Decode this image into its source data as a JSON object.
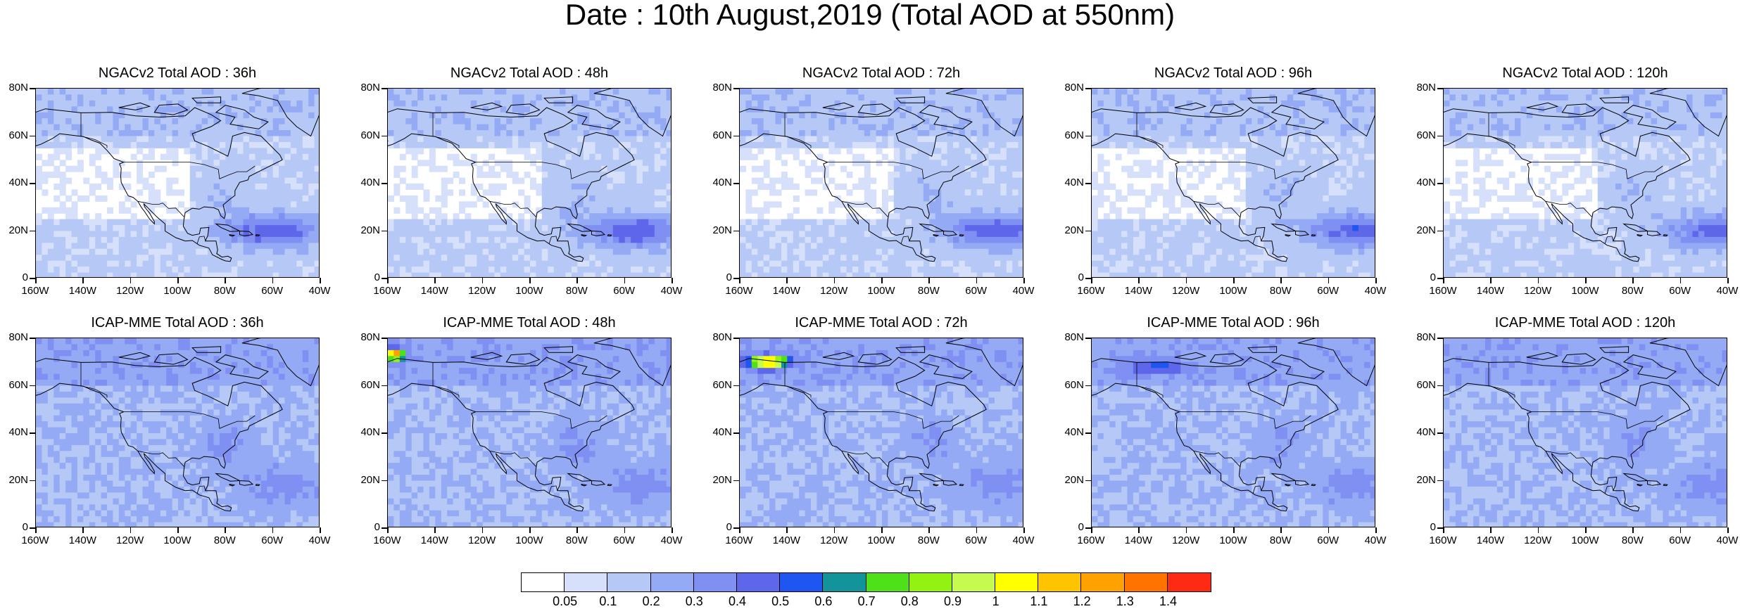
{
  "title": "Date : 10th August,2019 (Total AOD at 550nm)",
  "colors": {
    "land_outline": "#000000",
    "background": "#ffffff"
  },
  "axes": {
    "y_ticks": [
      "80N",
      "60N",
      "40N",
      "20N",
      "0"
    ],
    "x_ticks": [
      "160W",
      "140W",
      "120W",
      "100W",
      "80W",
      "60W",
      "40W"
    ]
  },
  "panels": [
    {
      "title": "NGACv2 Total AOD : 36h",
      "model": "NGACv2",
      "lead": "36h"
    },
    {
      "title": "NGACv2 Total AOD : 48h",
      "model": "NGACv2",
      "lead": "48h"
    },
    {
      "title": "NGACv2 Total AOD : 72h",
      "model": "NGACv2",
      "lead": "72h"
    },
    {
      "title": "NGACv2 Total AOD : 96h",
      "model": "NGACv2",
      "lead": "96h"
    },
    {
      "title": "NGACv2 Total AOD : 120h",
      "model": "NGACv2",
      "lead": "120h"
    },
    {
      "title": "ICAP-MME Total AOD : 36h",
      "model": "ICAP-MME",
      "lead": "36h"
    },
    {
      "title": "ICAP-MME Total AOD : 48h",
      "model": "ICAP-MME",
      "lead": "48h"
    },
    {
      "title": "ICAP-MME Total AOD : 72h",
      "model": "ICAP-MME",
      "lead": "72h"
    },
    {
      "title": "ICAP-MME Total AOD : 96h",
      "model": "ICAP-MME",
      "lead": "96h"
    },
    {
      "title": "ICAP-MME Total AOD : 120h",
      "model": "ICAP-MME",
      "lead": "120h"
    }
  ],
  "colorbar": {
    "colors": [
      "#ffffff",
      "#d6e0fb",
      "#b6c8f6",
      "#94aaf5",
      "#7f8ff2",
      "#5e66ea",
      "#1f55f0",
      "#13949a",
      "#4ee11a",
      "#94f213",
      "#c6fa4e",
      "#ffff00",
      "#ffc400",
      "#ffa100",
      "#ff7400",
      "#ff2a14"
    ],
    "labels": [
      "0.05",
      "0.1",
      "0.2",
      "0.3",
      "0.4",
      "0.5",
      "0.6",
      "0.7",
      "0.8",
      "0.9",
      "1",
      "1.1",
      "1.2",
      "1.3",
      "1.4"
    ]
  }
}
